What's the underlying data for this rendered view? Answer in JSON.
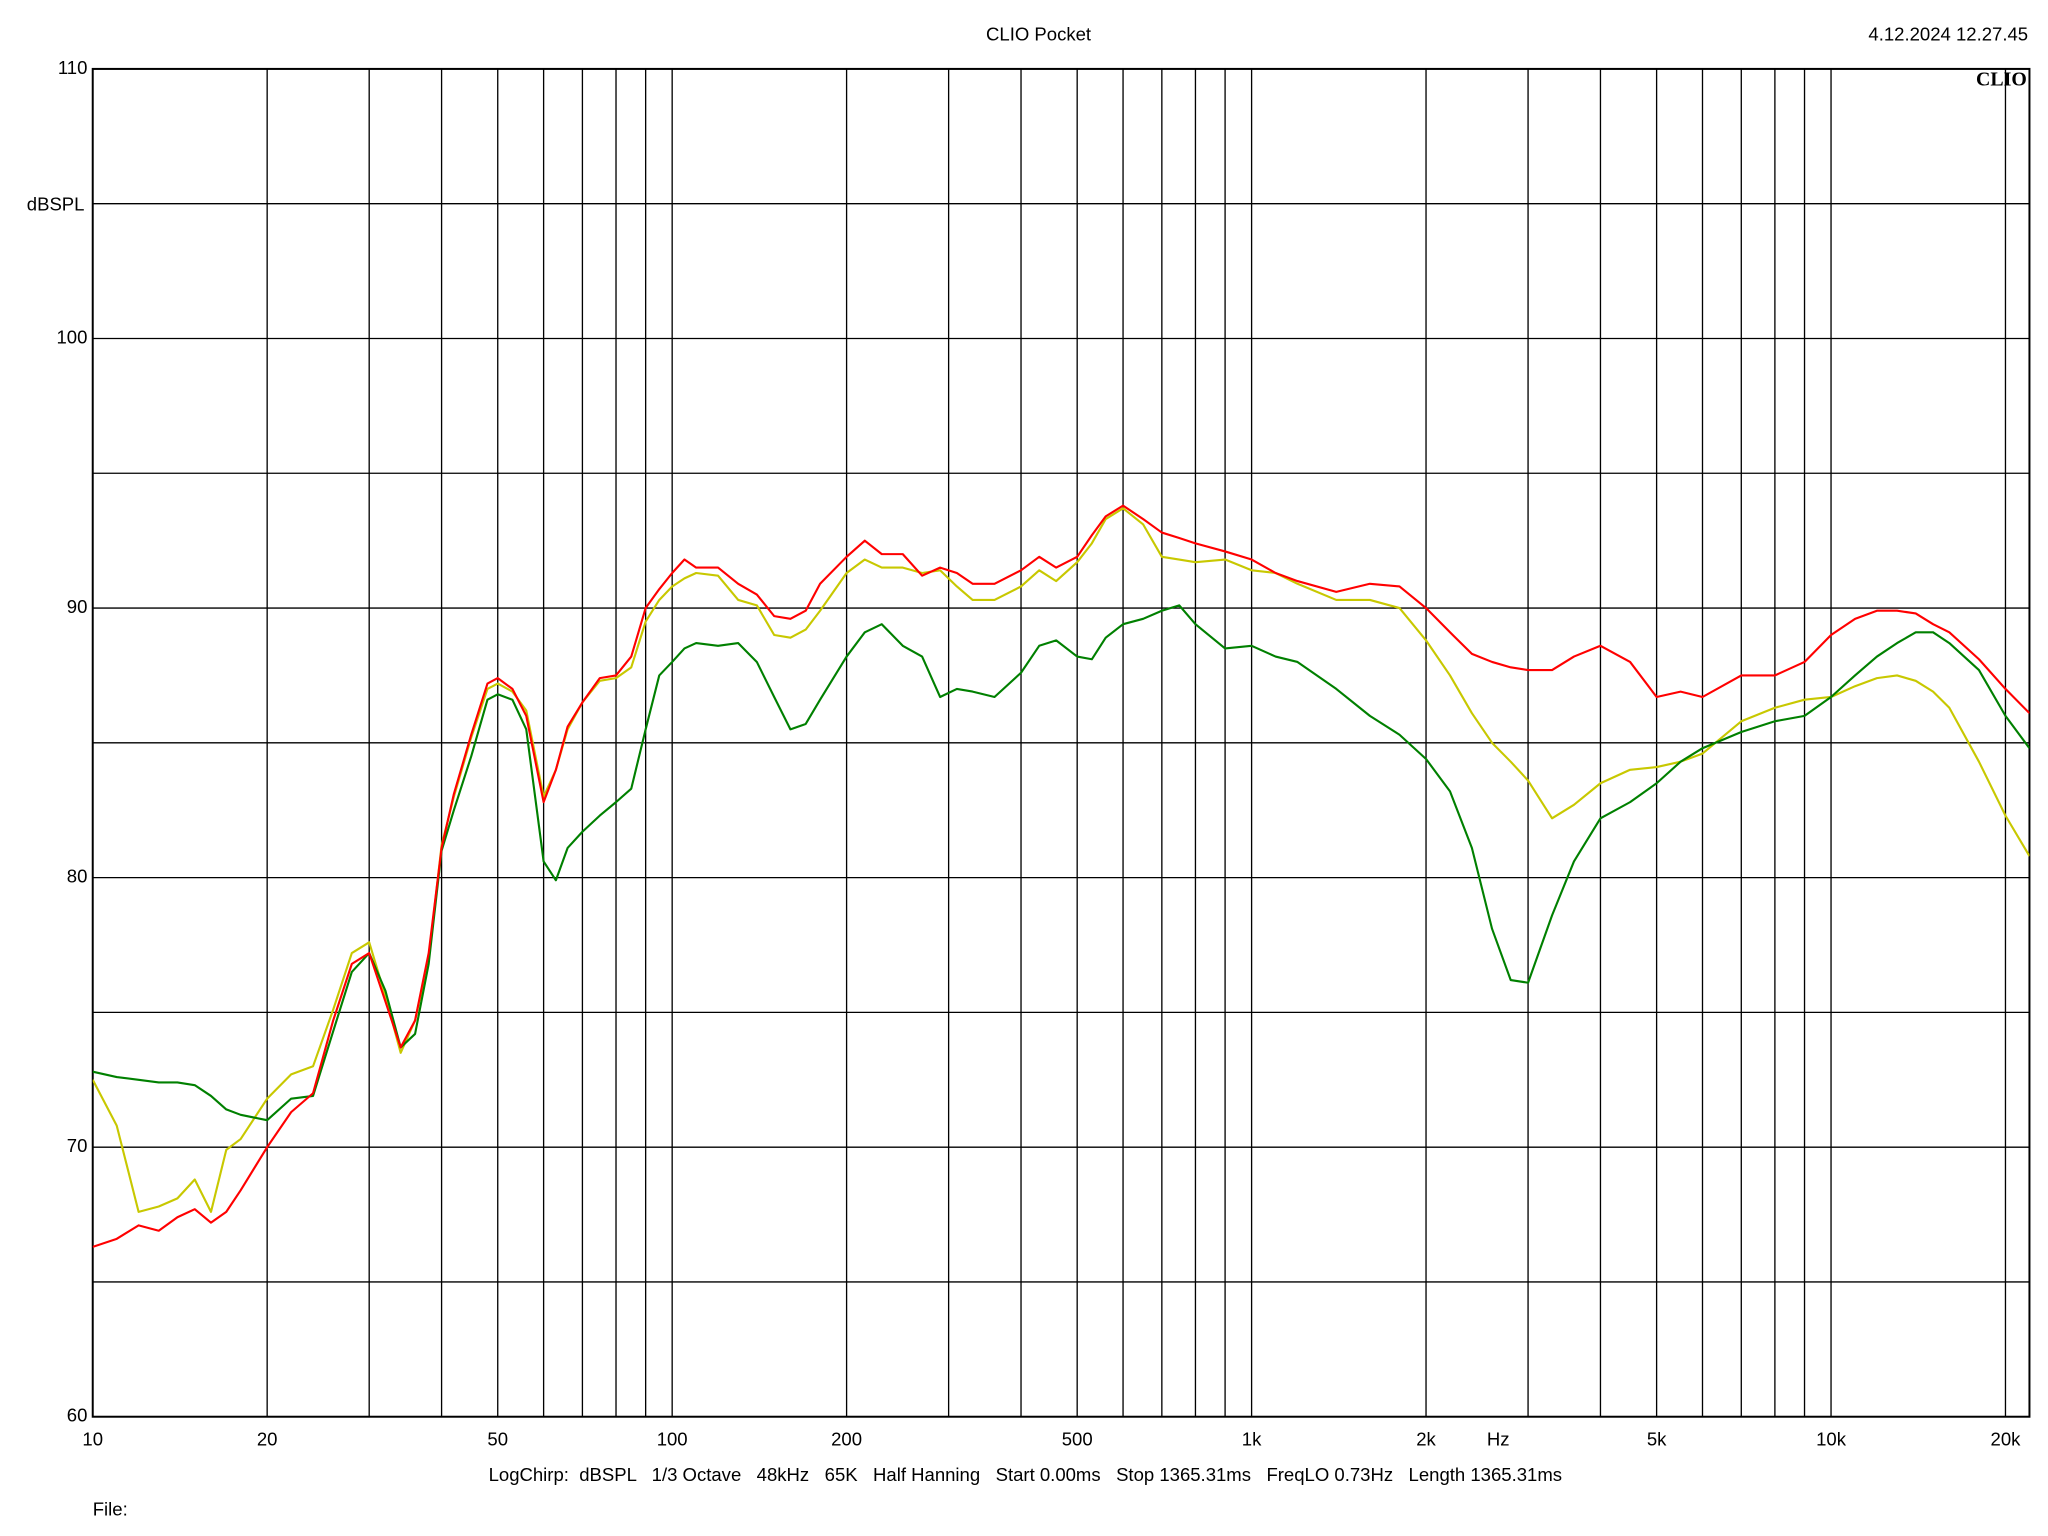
{
  "chart_data": {
    "type": "line",
    "title": "CLIO Pocket",
    "timestamp": "4.12.2024 12.27.45",
    "logo": "CLIO",
    "xlabel": "Hz",
    "ylabel": "dBSPL",
    "footer": "LogChirp:  dBSPL   1/3 Octave   48kHz   65K   Half Hanning   Start 0.00ms   Stop 1365.31ms   FreqLO 0.73Hz   Length 1365.31ms",
    "file_label": "File:",
    "xscale": "log",
    "xlim": [
      10,
      22000
    ],
    "ylim": [
      60,
      110
    ],
    "xticks": [
      10,
      20,
      50,
      100,
      200,
      500,
      {
        "value": 1000,
        "label": "1k"
      },
      {
        "value": 2000,
        "label": "2k"
      },
      {
        "value": 5000,
        "label": "5k"
      },
      {
        "value": 10000,
        "label": "10k"
      },
      {
        "value": 20000,
        "label": "20k"
      }
    ],
    "x_minor_grid": [
      30,
      40,
      60,
      70,
      80,
      90,
      300,
      400,
      600,
      700,
      800,
      900,
      3000,
      4000,
      6000,
      7000,
      8000,
      9000
    ],
    "yticks": [
      60,
      70,
      80,
      90,
      100,
      110
    ],
    "y_minor_grid": [
      65,
      75,
      85,
      95,
      105
    ],
    "grid": true,
    "x": [
      10,
      11,
      12,
      13,
      14,
      15,
      16,
      17,
      18,
      20,
      22,
      24,
      26,
      28,
      30,
      32,
      34,
      36,
      38,
      40,
      42,
      45,
      48,
      50,
      53,
      56,
      60,
      63,
      66,
      70,
      75,
      80,
      85,
      90,
      95,
      100,
      105,
      110,
      120,
      130,
      140,
      150,
      160,
      170,
      180,
      200,
      215,
      230,
      250,
      270,
      290,
      310,
      330,
      360,
      400,
      430,
      460,
      500,
      530,
      560,
      600,
      650,
      700,
      750,
      800,
      900,
      1000,
      1100,
      1200,
      1400,
      1600,
      1800,
      2000,
      2200,
      2400,
      2600,
      2800,
      3000,
      3300,
      3600,
      4000,
      4500,
      5000,
      5500,
      6000,
      7000,
      8000,
      9000,
      10000,
      11000,
      12000,
      13000,
      14000,
      15000,
      16000,
      18000,
      20000,
      22000
    ],
    "series": [
      {
        "color": "#ff0000",
        "values": [
          66.3,
          66.6,
          67.1,
          66.9,
          67.4,
          67.7,
          67.2,
          67.6,
          68.4,
          70.0,
          71.3,
          72.0,
          74.7,
          76.8,
          77.2,
          75.4,
          73.7,
          74.7,
          77.2,
          81.1,
          83.1,
          85.3,
          87.2,
          87.4,
          87.0,
          86.0,
          82.8,
          84.0,
          85.6,
          86.5,
          87.4,
          87.5,
          88.2,
          90.0,
          90.7,
          91.3,
          91.8,
          91.5,
          91.5,
          90.9,
          90.5,
          89.7,
          89.6,
          89.9,
          90.9,
          91.9,
          92.5,
          92.0,
          92.0,
          91.2,
          91.5,
          91.3,
          90.9,
          90.9,
          91.4,
          91.9,
          91.5,
          91.9,
          92.7,
          93.4,
          93.8,
          93.3,
          92.8,
          92.6,
          92.4,
          92.1,
          91.8,
          91.3,
          91.0,
          90.6,
          90.9,
          90.8,
          90.0,
          89.1,
          88.3,
          88.0,
          87.8,
          87.7,
          87.7,
          88.2,
          88.6,
          88.0,
          86.7,
          86.9,
          86.7,
          87.5,
          87.5,
          88.0,
          89.0,
          89.6,
          89.9,
          89.9,
          89.8,
          89.4,
          89.1,
          88.1,
          87.0,
          86.1
        ]
      },
      {
        "color": "#c8c800",
        "values": [
          72.5,
          70.8,
          67.6,
          67.8,
          68.1,
          68.8,
          67.6,
          69.9,
          70.3,
          71.8,
          72.7,
          73.0,
          75.1,
          77.2,
          77.6,
          75.6,
          73.5,
          74.7,
          77.0,
          81.2,
          83.0,
          85.2,
          87.0,
          87.2,
          86.9,
          86.2,
          83.0,
          84.0,
          85.5,
          86.5,
          87.3,
          87.4,
          87.8,
          89.5,
          90.3,
          90.8,
          91.1,
          91.3,
          91.2,
          90.3,
          90.1,
          89.0,
          88.9,
          89.2,
          89.9,
          91.3,
          91.8,
          91.5,
          91.5,
          91.3,
          91.4,
          90.8,
          90.3,
          90.3,
          90.8,
          91.4,
          91.0,
          91.7,
          92.4,
          93.3,
          93.7,
          93.1,
          91.9,
          91.8,
          91.7,
          91.8,
          91.4,
          91.3,
          90.9,
          90.3,
          90.3,
          90.0,
          88.8,
          87.5,
          86.1,
          85.0,
          84.3,
          83.6,
          82.2,
          82.7,
          83.5,
          84.0,
          84.1,
          84.3,
          84.6,
          85.8,
          86.3,
          86.6,
          86.7,
          87.1,
          87.4,
          87.5,
          87.3,
          86.9,
          86.3,
          84.3,
          82.3,
          80.8
        ]
      },
      {
        "color": "#008000",
        "values": [
          72.8,
          72.6,
          72.5,
          72.4,
          72.4,
          72.3,
          71.9,
          71.4,
          71.2,
          71.0,
          71.8,
          71.9,
          74.3,
          76.5,
          77.2,
          75.8,
          73.7,
          74.2,
          76.8,
          81.0,
          82.5,
          84.5,
          86.6,
          86.8,
          86.6,
          85.5,
          80.6,
          79.9,
          81.1,
          81.7,
          82.3,
          82.8,
          83.3,
          85.5,
          87.5,
          88.0,
          88.5,
          88.7,
          88.6,
          88.7,
          88.0,
          86.7,
          85.5,
          85.7,
          86.6,
          88.2,
          89.1,
          89.4,
          88.6,
          88.2,
          86.7,
          87.0,
          86.9,
          86.7,
          87.6,
          88.6,
          88.8,
          88.2,
          88.1,
          88.9,
          89.4,
          89.6,
          89.9,
          90.1,
          89.4,
          88.5,
          88.6,
          88.2,
          88.0,
          87.0,
          86.0,
          85.3,
          84.4,
          83.2,
          81.1,
          78.1,
          76.2,
          76.1,
          78.6,
          80.6,
          82.2,
          82.8,
          83.5,
          84.3,
          84.8,
          85.4,
          85.8,
          86.0,
          86.7,
          87.5,
          88.2,
          88.7,
          89.1,
          89.1,
          88.7,
          87.7,
          86.0,
          84.8
        ]
      }
    ]
  }
}
